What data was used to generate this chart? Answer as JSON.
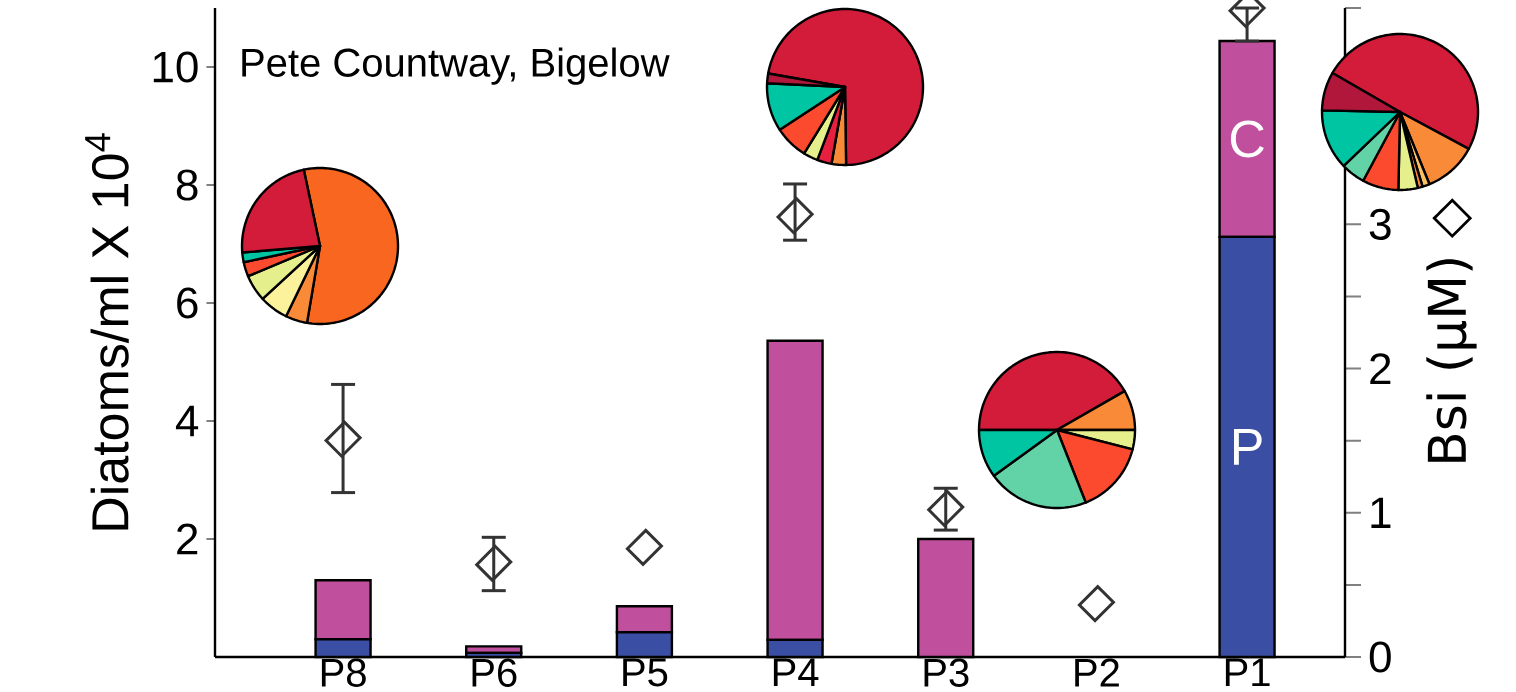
{
  "chart_data": [
    {
      "type": "bar",
      "stacked": true,
      "categories": [
        "P8",
        "P6",
        "P5",
        "P4",
        "P3",
        "P2",
        "P1"
      ],
      "series": [
        {
          "name": "P",
          "color": "#3a4fa3",
          "values": [
            0.3,
            0.07,
            0.42,
            0.29,
            0,
            0,
            7.12
          ]
        },
        {
          "name": "C",
          "color": "#c04f9e",
          "values": [
            1.0,
            0.11,
            0.44,
            5.07,
            2.0,
            0,
            3.32
          ]
        },
        {
          "type": "scatter",
          "axis": "y2",
          "marker": "diamond",
          "color": "#333333",
          "values": [
            1.51,
            0.65,
            0.76,
            3.06,
            1.03,
            0.37,
            4.49
          ],
          "errors": [
            [
              1.14,
              1.89
            ],
            [
              0.46,
              0.83
            ],
            null,
            [
              2.89,
              3.28
            ],
            [
              0.88,
              1.17
            ],
            null,
            [
              4.27,
              4.5
            ]
          ]
        }
      ],
      "ylim": [
        0,
        11
      ],
      "yticks": [
        2,
        4,
        6,
        8,
        10
      ],
      "y2lim": [
        0,
        4.5
      ],
      "y2ticks": [
        0,
        {
          "value": 0.5,
          "label": null
        },
        1,
        {
          "value": 1.5,
          "label": null
        },
        2,
        {
          "value": 2.5,
          "label": null
        },
        3,
        {
          "value": 3.5,
          "label": null
        },
        {
          "value": 4,
          "label": null
        },
        {
          "value": 4.5,
          "label": null
        }
      ],
      "ylabel": "Diatoms/ml X 10$^{4}$",
      "y2label": "Bsi (µM) ◇",
      "annotations": [
        "Pete Countway, Bigelow"
      ]
    },
    {
      "type": "pie",
      "categories": [
        null,
        null,
        null,
        null,
        null,
        null,
        null
      ],
      "values": [
        56,
        4.5,
        6,
        5.5,
        3,
        2,
        23
      ],
      "colors": [
        "#f86620",
        "#f98a38",
        "#fbf29b",
        "#e5f08c",
        "#fb4a2e",
        "#00c5a3",
        "#d31c3a"
      ]
    },
    {
      "type": "pie",
      "categories": [
        null,
        null,
        null,
        null,
        null,
        null,
        null
      ],
      "values": [
        72,
        3,
        3,
        3,
        7,
        10,
        2
      ],
      "colors": [
        "#d31c3a",
        "#f98a38",
        "#e8203f",
        "#e5f08c",
        "#fb4a2e",
        "#00c5a3",
        "#b0173a"
      ]
    },
    {
      "type": "pie",
      "categories": [
        null,
        null,
        null,
        null,
        null,
        null
      ],
      "values": [
        41.7,
        8.3,
        4,
        15,
        21,
        10
      ],
      "colors": [
        "#d31c3a",
        "#f98a38",
        "#e5f08c",
        "#fb4a2e",
        "#62d3a6",
        "#00c5a3"
      ]
    },
    {
      "type": "pie",
      "categories": [
        null,
        null,
        null,
        null,
        null,
        null,
        null,
        null,
        null
      ],
      "values": [
        49.5,
        11,
        1.5,
        1,
        4,
        7.5,
        5,
        12.5,
        8
      ],
      "colors": [
        "#d31c3a",
        "#f98a38",
        "#fbc060",
        "#f98a38",
        "#e5f08c",
        "#fb4a2e",
        "#62d3a6",
        "#00c5a3",
        "#b0173a"
      ]
    }
  ]
}
